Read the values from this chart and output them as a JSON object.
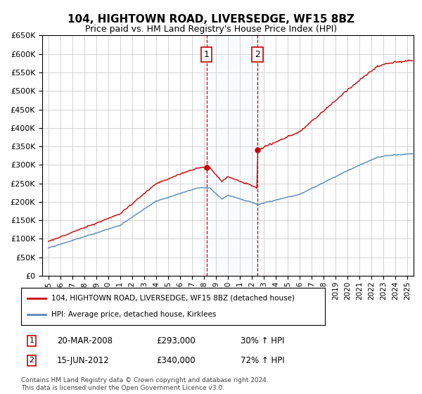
{
  "title": "104, HIGHTOWN ROAD, LIVERSEDGE, WF15 8BZ",
  "subtitle": "Price paid vs. HM Land Registry's House Price Index (HPI)",
  "ylim": [
    0,
    650000
  ],
  "yticks": [
    0,
    50000,
    100000,
    150000,
    200000,
    250000,
    300000,
    350000,
    400000,
    450000,
    500000,
    550000,
    600000,
    650000
  ],
  "hpi_color": "#5588bb",
  "property_color": "#cc0000",
  "grid_color": "#cccccc",
  "background_color": "#ffffff",
  "legend_labels": [
    "104, HIGHTOWN ROAD, LIVERSEDGE, WF15 8BZ (detached house)",
    "HPI: Average price, detached house, Kirklees"
  ],
  "transaction1": {
    "label": "1",
    "date": "20-MAR-2008",
    "price": 293000,
    "hpi_pct": "30% ↑ HPI",
    "x": 2008.22
  },
  "transaction2": {
    "label": "2",
    "date": "15-JUN-2012",
    "price": 340000,
    "hpi_pct": "72% ↑ HPI",
    "x": 2012.46
  },
  "footnote": "Contains HM Land Registry data © Crown copyright and database right 2024.\nThis data is licensed under the Open Government Licence v3.0.",
  "box_color": "#cc0000",
  "shade_color": "#ddeeff"
}
